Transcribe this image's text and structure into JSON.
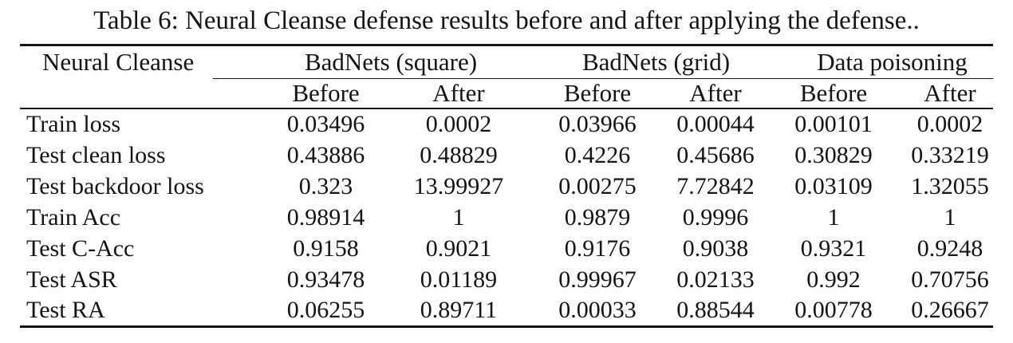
{
  "caption": "Table 6: Neural Cleanse defense results before and after applying the defense..",
  "table": {
    "corner_header": "Neural Cleanse",
    "groups": [
      {
        "label": "BadNets (square)"
      },
      {
        "label": "BadNets (grid)"
      },
      {
        "label": "Data poisoning"
      }
    ],
    "sub_headers": [
      "Before",
      "After",
      "Before",
      "After",
      "Before",
      "After"
    ],
    "rows": [
      {
        "label": "Train loss",
        "values": [
          "0.03496",
          "0.0002",
          "0.03966",
          "0.00044",
          "0.00101",
          "0.0002"
        ]
      },
      {
        "label": "Test clean loss",
        "values": [
          "0.43886",
          "0.48829",
          "0.4226",
          "0.45686",
          "0.30829",
          "0.33219"
        ]
      },
      {
        "label": "Test backdoor loss",
        "values": [
          "0.323",
          "13.99927",
          "0.00275",
          "7.72842",
          "0.03109",
          "1.32055"
        ]
      },
      {
        "label": "Train Acc",
        "values": [
          "0.98914",
          "1",
          "0.9879",
          "0.9996",
          "1",
          "1"
        ]
      },
      {
        "label": "Test C-Acc",
        "values": [
          "0.9158",
          "0.9021",
          "0.9176",
          "0.9038",
          "0.9321",
          "0.9248"
        ]
      },
      {
        "label": "Test ASR",
        "values": [
          "0.93478",
          "0.01189",
          "0.99967",
          "0.02133",
          "0.992",
          "0.70756"
        ]
      },
      {
        "label": "Test RA",
        "values": [
          "0.06255",
          "0.89711",
          "0.00033",
          "0.88544",
          "0.00778",
          "0.26667"
        ]
      }
    ]
  },
  "colors": {
    "text": "#141414",
    "rule": "#141414",
    "background": "#fefefe"
  }
}
